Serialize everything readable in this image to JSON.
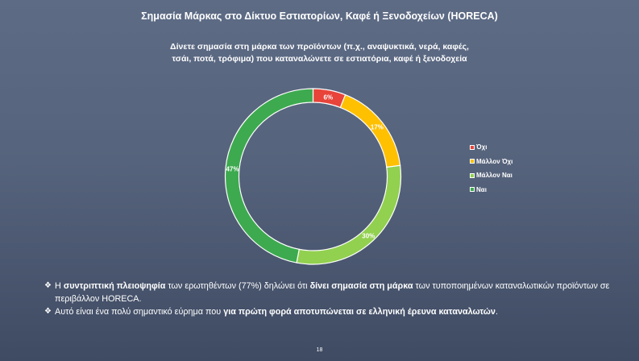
{
  "title": "Σημασία Μάρκας στο Δίκτυο Εστιατορίων, Καφέ ή Ξενοδοχείων (HORECA)",
  "subtitle_line1": "Δίνετε σημασία στη μάρκα των προϊόντων (π.χ., αναψυκτικά, νερά, καφές,",
  "subtitle_line2": "τσάι, ποτά, τρόφιμα) που καταναλώνετε σε εστιατόρια, καφέ ή ξενοδοχεία",
  "chart_data": {
    "type": "pie",
    "variant": "doughnut",
    "categories": [
      "Όχι",
      "Μάλλον Όχι",
      "Μάλλον Ναι",
      "Ναι"
    ],
    "values": [
      6,
      17,
      30,
      47
    ],
    "labels": [
      "6%",
      "17%",
      "30%",
      "47%"
    ],
    "colors": [
      "#e8443a",
      "#ffc000",
      "#92d050",
      "#3daa4f"
    ],
    "legend_position": "right"
  },
  "bullets": [
    {
      "parts": [
        {
          "text": "Η ",
          "bold": false
        },
        {
          "text": "συντριπτική πλειοψηφία",
          "bold": true
        },
        {
          "text": " των ερωτηθέντων (77%) δηλώνει ότι ",
          "bold": false
        },
        {
          "text": "δίνει σημασία στη μάρκα",
          "bold": true
        },
        {
          "text": " των τυποποιημένων καταναλωτικών  προϊόντων σε περιβάλλον HORECA.",
          "bold": false
        }
      ]
    },
    {
      "parts": [
        {
          "text": "Αυτό είναι ένα πολύ σημαντικό εύρημα που ",
          "bold": false
        },
        {
          "text": "για πρώτη φορά αποτυπώνεται σε ελληνική έρευνα καταναλωτών",
          "bold": true
        },
        {
          "text": ".",
          "bold": false
        }
      ]
    }
  ],
  "bullet_symbol": "❖",
  "page_number": "18"
}
